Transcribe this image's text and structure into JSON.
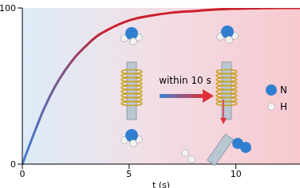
{
  "chart_data": {
    "type": "line",
    "xlabel": "t (s)",
    "x": [
      0,
      0.5,
      1,
      1.5,
      2,
      2.5,
      3,
      3.5,
      4,
      5,
      6,
      7,
      8,
      9,
      10,
      11,
      12,
      13
    ],
    "values": [
      0,
      18,
      35,
      49,
      60,
      69,
      76,
      82,
      86,
      92,
      95,
      97,
      98,
      99,
      99.5,
      99.8,
      100,
      100
    ],
    "color": "#cc1f2a",
    "xlim": [
      0,
      13
    ],
    "xticks": [
      0,
      5,
      10
    ],
    "ylim": [
      0,
      100
    ],
    "yticks": [
      0,
      100
    ],
    "grid": false,
    "annotations": [
      {
        "text": "within 10 s"
      },
      {
        "text": "N"
      },
      {
        "text": "H"
      }
    ]
  }
}
